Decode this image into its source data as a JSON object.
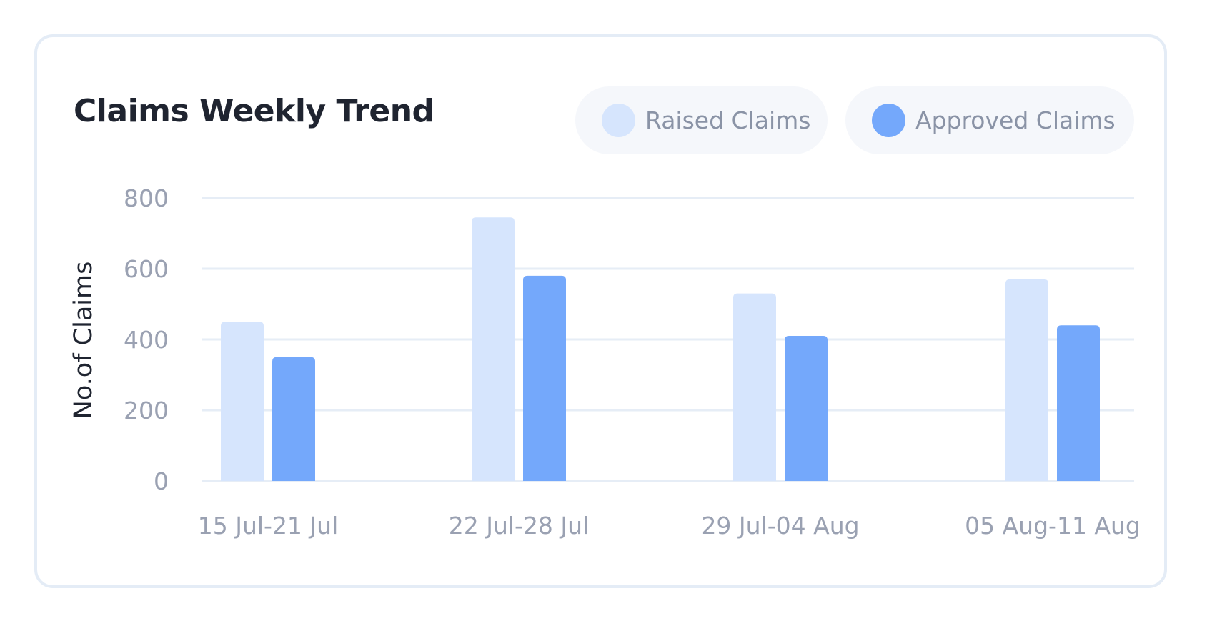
{
  "colors": {
    "raised": "#d6e5fd",
    "approved": "#74a8fb",
    "grid": "#e6edf6",
    "tick": "#9aa1b2"
  },
  "chart_data": {
    "type": "bar",
    "title": "Claims Weekly Trend",
    "xlabel": "",
    "ylabel": "No.of Claims",
    "ylim": [
      0,
      800
    ],
    "yticks": [
      0,
      200,
      400,
      600,
      800
    ],
    "grid": true,
    "legend": "top-right",
    "categories": [
      "15 Jul-21 Jul",
      "22 Jul-28 Jul",
      "29 Jul-04 Aug",
      "05 Aug-11 Aug"
    ],
    "series": [
      {
        "name": "Raised Claims",
        "color": "#d6e5fd",
        "values": [
          450,
          745,
          530,
          570
        ]
      },
      {
        "name": "Approved Claims",
        "color": "#74a8fb",
        "values": [
          350,
          580,
          410,
          440
        ]
      }
    ]
  }
}
